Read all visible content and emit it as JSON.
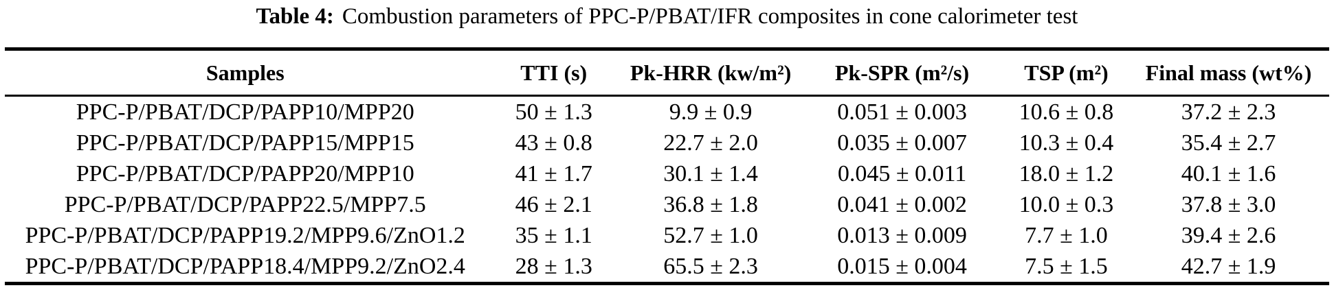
{
  "caption": {
    "label": "Table 4:",
    "text": "Combustion parameters of PPC-P/PBAT/IFR composites in cone calorimeter test"
  },
  "table": {
    "columns": [
      "Samples",
      "TTI (s)",
      "Pk-HRR (kw/m²)",
      "Pk-SPR (m²/s)",
      "TSP (m²)",
      "Final mass (wt%)"
    ],
    "rows": [
      [
        "PPC-P/PBAT/DCP/PAPP10/MPP20",
        "50 ± 1.3",
        "9.9 ± 0.9",
        "0.051 ± 0.003",
        "10.6 ± 0.8",
        "37.2 ± 2.3"
      ],
      [
        "PPC-P/PBAT/DCP/PAPP15/MPP15",
        "43 ± 0.8",
        "22.7 ± 2.0",
        "0.035 ± 0.007",
        "10.3 ± 0.4",
        "35.4 ± 2.7"
      ],
      [
        "PPC-P/PBAT/DCP/PAPP20/MPP10",
        "41 ± 1.7",
        "30.1 ± 1.4",
        "0.045 ± 0.011",
        "18.0 ± 1.2",
        "40.1 ± 1.6"
      ],
      [
        "PPC-P/PBAT/DCP/PAPP22.5/MPP7.5",
        "46 ± 2.1",
        "36.8 ± 1.8",
        "0.041 ± 0.002",
        "10.0 ± 0.3",
        "37.8 ± 3.0"
      ],
      [
        "PPC-P/PBAT/DCP/PAPP19.2/MPP9.6/ZnO1.2",
        "35 ± 1.1",
        "52.7 ± 1.0",
        "0.013 ± 0.009",
        "7.7 ± 1.0",
        "39.4 ± 2.6"
      ],
      [
        "PPC-P/PBAT/DCP/PAPP18.4/MPP9.2/ZnO2.4",
        "28 ± 1.3",
        "65.5 ± 2.3",
        "0.015 ± 0.004",
        "7.5 ± 1.5",
        "42.7 ± 1.9"
      ]
    ]
  },
  "colors": {
    "text": "#000000",
    "rule": "#000000",
    "background": "#ffffff"
  }
}
